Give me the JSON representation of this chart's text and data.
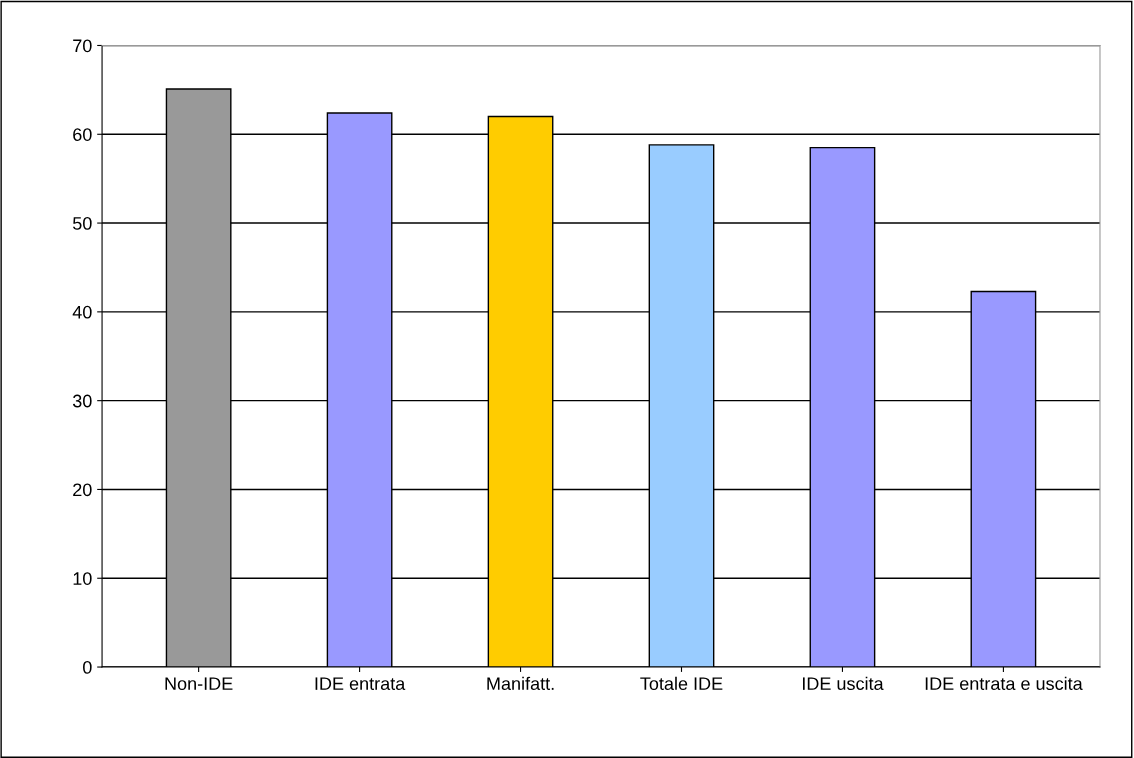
{
  "chart_data": {
    "type": "bar",
    "categories": [
      "Non-IDE",
      "IDE entrata",
      "Manifatt.",
      "Totale IDE",
      "IDE uscita",
      "IDE entrata e uscita"
    ],
    "values": [
      65.1,
      62.4,
      62.0,
      58.8,
      58.5,
      42.3
    ],
    "colors": [
      "#999999",
      "#9999ff",
      "#ffcc00",
      "#99ccff",
      "#9999ff",
      "#9999ff"
    ],
    "ylim": [
      0,
      70
    ],
    "yticks": [
      0,
      10,
      20,
      30,
      40,
      50,
      60,
      70
    ],
    "grid": "y"
  }
}
